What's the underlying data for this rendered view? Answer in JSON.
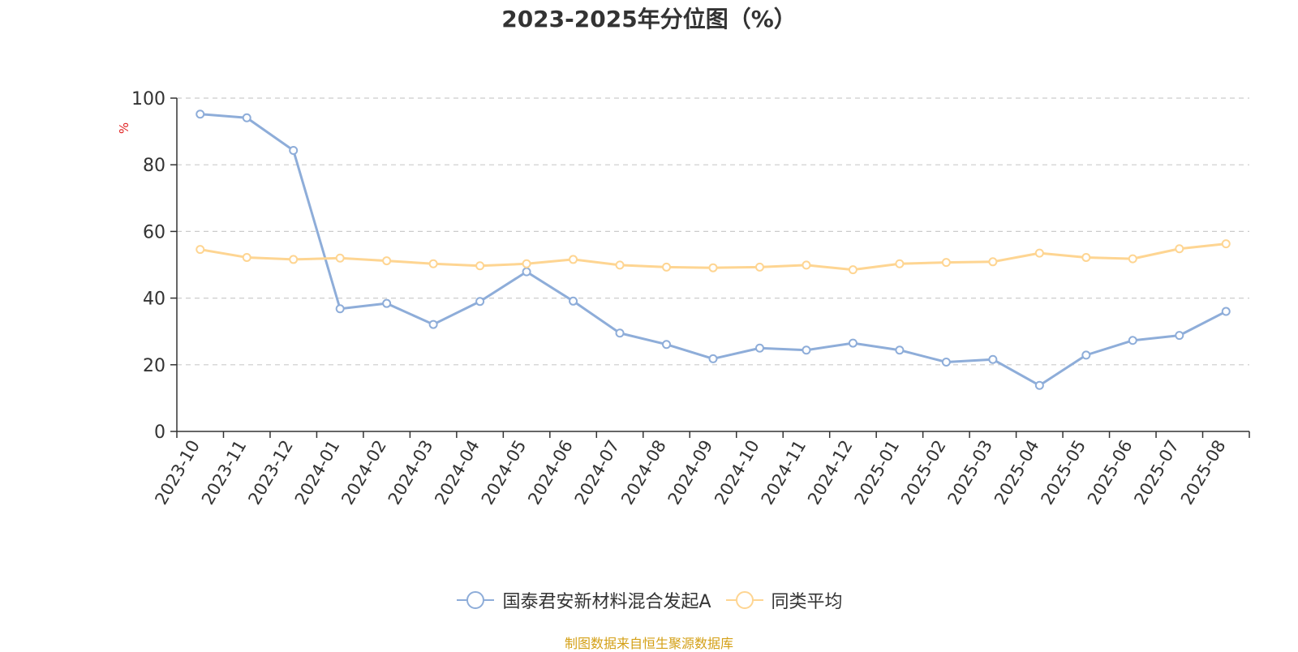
{
  "title": "2023-2025年分位图（%）",
  "source_note": "制图数据来自恒生聚源数据库",
  "colors": {
    "series_a": "#8eadd9",
    "series_b": "#fed592",
    "ylabel": "#e02020",
    "axis": "#333333",
    "grid": "#cccccc",
    "source": "#d4a017"
  },
  "chart_data": {
    "type": "line",
    "title": "2023-2025年分位图（%）",
    "xlabel": "",
    "ylabel": "%",
    "ylim": [
      0,
      100
    ],
    "yticks": [
      0,
      20,
      40,
      60,
      80,
      100
    ],
    "grid": true,
    "legend_position": "bottom-center",
    "categories": [
      "2023-10",
      "2023-11",
      "2023-12",
      "2024-01",
      "2024-02",
      "2024-03",
      "2024-04",
      "2024-05",
      "2024-06",
      "2024-07",
      "2024-08",
      "2024-09",
      "2024-10",
      "2024-11",
      "2024-12",
      "2025-01",
      "2025-02",
      "2025-03",
      "2025-04",
      "2025-05",
      "2025-06",
      "2025-07",
      "2025-08"
    ],
    "series": [
      {
        "name": "国泰君安新材料混合发起A",
        "values": [
          95.2,
          94.1,
          84.3,
          36.8,
          38.4,
          32.1,
          39.0,
          47.9,
          39.1,
          29.5,
          26.1,
          21.8,
          25.0,
          24.4,
          26.5,
          24.4,
          20.8,
          21.6,
          13.8,
          22.9,
          27.3,
          28.8,
          36.0
        ]
      },
      {
        "name": "同类平均",
        "values": [
          54.6,
          52.2,
          51.6,
          52.0,
          51.2,
          50.3,
          49.7,
          50.3,
          51.6,
          49.9,
          49.3,
          49.1,
          49.3,
          49.9,
          48.5,
          50.3,
          50.7,
          50.9,
          53.5,
          52.2,
          51.8,
          54.8,
          56.3
        ]
      }
    ]
  }
}
